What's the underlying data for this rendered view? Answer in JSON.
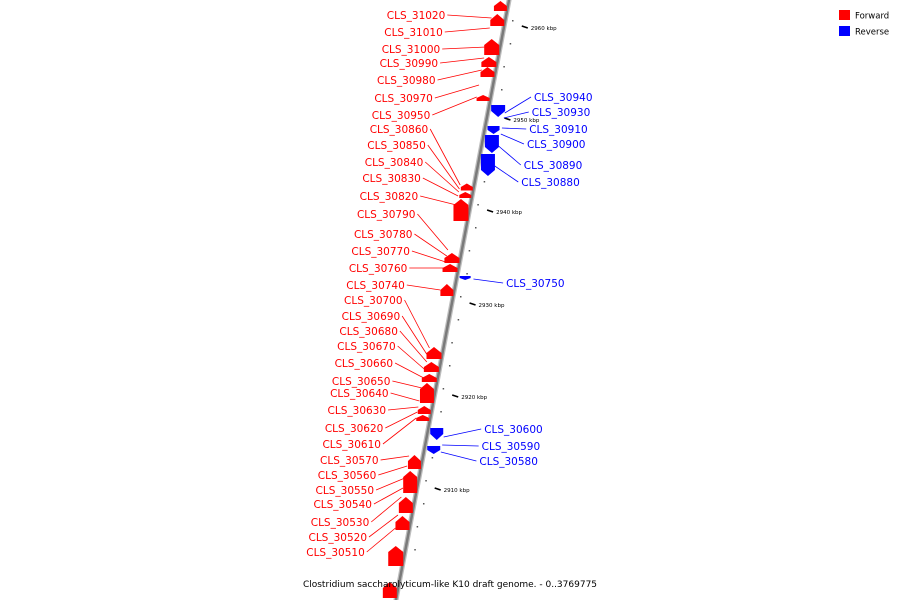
{
  "legend": {
    "items": [
      {
        "label": "Forward",
        "color": "#ff0000"
      },
      {
        "label": "Reverse",
        "color": "#0000ff"
      }
    ]
  },
  "caption": "Clostridium saccharolyticum-like K10 draft genome. - 0..3769775",
  "colors": {
    "forward": "#ff0000",
    "reverse": "#0000ff",
    "backbone": "#7a7a7a"
  },
  "scale_ticks": [
    "2960 kbp",
    "2950 kbp",
    "2940 kbp",
    "2930 kbp",
    "2920 kbp",
    "2910 kbp"
  ],
  "genes": [
    {
      "name": "CLS_31020",
      "strand": "forward"
    },
    {
      "name": "CLS_31010",
      "strand": "forward"
    },
    {
      "name": "CLS_31000",
      "strand": "forward"
    },
    {
      "name": "CLS_30990",
      "strand": "forward"
    },
    {
      "name": "CLS_30980",
      "strand": "forward"
    },
    {
      "name": "CLS_30970",
      "strand": "forward"
    },
    {
      "name": "CLS_30950",
      "strand": "forward"
    },
    {
      "name": "CLS_30860",
      "strand": "forward"
    },
    {
      "name": "CLS_30850",
      "strand": "forward"
    },
    {
      "name": "CLS_30840",
      "strand": "forward"
    },
    {
      "name": "CLS_30830",
      "strand": "forward"
    },
    {
      "name": "CLS_30820",
      "strand": "forward"
    },
    {
      "name": "CLS_30790",
      "strand": "forward"
    },
    {
      "name": "CLS_30780",
      "strand": "forward"
    },
    {
      "name": "CLS_30770",
      "strand": "forward"
    },
    {
      "name": "CLS_30760",
      "strand": "forward"
    },
    {
      "name": "CLS_30740",
      "strand": "forward"
    },
    {
      "name": "CLS_30700",
      "strand": "forward"
    },
    {
      "name": "CLS_30690",
      "strand": "forward"
    },
    {
      "name": "CLS_30680",
      "strand": "forward"
    },
    {
      "name": "CLS_30670",
      "strand": "forward"
    },
    {
      "name": "CLS_30660",
      "strand": "forward"
    },
    {
      "name": "CLS_30650",
      "strand": "forward"
    },
    {
      "name": "CLS_30640",
      "strand": "forward"
    },
    {
      "name": "CLS_30630",
      "strand": "forward"
    },
    {
      "name": "CLS_30620",
      "strand": "forward"
    },
    {
      "name": "CLS_30610",
      "strand": "forward"
    },
    {
      "name": "CLS_30570",
      "strand": "forward"
    },
    {
      "name": "CLS_30560",
      "strand": "forward"
    },
    {
      "name": "CLS_30550",
      "strand": "forward"
    },
    {
      "name": "CLS_30540",
      "strand": "forward"
    },
    {
      "name": "CLS_30530",
      "strand": "forward"
    },
    {
      "name": "CLS_30520",
      "strand": "forward"
    },
    {
      "name": "CLS_30510",
      "strand": "forward"
    },
    {
      "name": "CLS_30940",
      "strand": "reverse"
    },
    {
      "name": "CLS_30930",
      "strand": "reverse"
    },
    {
      "name": "CLS_30910",
      "strand": "reverse"
    },
    {
      "name": "CLS_30900",
      "strand": "reverse"
    },
    {
      "name": "CLS_30890",
      "strand": "reverse"
    },
    {
      "name": "CLS_30880",
      "strand": "reverse"
    },
    {
      "name": "CLS_30750",
      "strand": "reverse"
    },
    {
      "name": "CLS_30600",
      "strand": "reverse"
    },
    {
      "name": "CLS_30590",
      "strand": "reverse"
    },
    {
      "name": "CLS_30580",
      "strand": "reverse"
    }
  ]
}
